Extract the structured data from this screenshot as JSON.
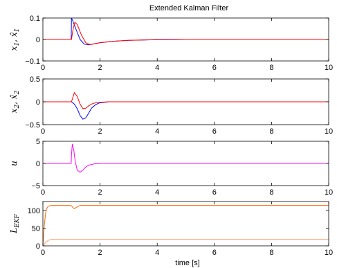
{
  "title": "Extended Kalman Filter",
  "xlabel": "time [s]",
  "chart_data": [
    {
      "type": "line",
      "ylabel": [
        "x",
        "1",
        ", ",
        "x̂",
        "1"
      ],
      "xlim": [
        0,
        10
      ],
      "ylim": [
        -0.1,
        0.1
      ],
      "xticks": [
        0,
        2,
        4,
        6,
        8,
        10
      ],
      "yticks": [
        -0.1,
        0,
        0.1
      ],
      "ytick_labels": [
        "−0.1",
        "0",
        "0.1"
      ],
      "series": [
        {
          "color": "#0000ff",
          "x": [
            0,
            0.99,
            1.0,
            1.05,
            1.15,
            1.3,
            1.45,
            1.6,
            1.8,
            2.0,
            2.5,
            3.0,
            4.0,
            5.0,
            10
          ],
          "y": [
            0,
            0,
            0.1,
            0.085,
            0.05,
            0.0,
            -0.022,
            -0.025,
            -0.02,
            -0.015,
            -0.008,
            -0.004,
            -0.001,
            0,
            0
          ]
        },
        {
          "color": "#ff0000",
          "x": [
            0,
            1.0,
            1.05,
            1.12,
            1.2,
            1.35,
            1.5,
            1.65,
            1.8,
            2.0,
            2.5,
            3.0,
            4.0,
            5.0,
            10
          ],
          "y": [
            0,
            0,
            0.045,
            0.08,
            0.07,
            0.02,
            -0.015,
            -0.024,
            -0.02,
            -0.015,
            -0.008,
            -0.004,
            -0.001,
            0,
            0
          ]
        }
      ]
    },
    {
      "type": "line",
      "ylabel": [
        "x",
        "2",
        ", ",
        "x̂",
        "2"
      ],
      "xlim": [
        0,
        10
      ],
      "ylim": [
        -0.5,
        0.5
      ],
      "xticks": [
        0,
        2,
        4,
        6,
        8,
        10
      ],
      "yticks": [
        -0.5,
        0,
        0.5
      ],
      "ytick_labels": [
        "−0.5",
        "0",
        "0.5"
      ],
      "series": [
        {
          "color": "#0000ff",
          "x": [
            0,
            1.0,
            1.1,
            1.2,
            1.3,
            1.4,
            1.5,
            1.6,
            1.7,
            1.85,
            2.0,
            2.3,
            3.0,
            10
          ],
          "y": [
            0,
            0,
            -0.05,
            -0.15,
            -0.3,
            -0.38,
            -0.35,
            -0.25,
            -0.14,
            -0.06,
            -0.02,
            0,
            0,
            0
          ]
        },
        {
          "color": "#ff0000",
          "x": [
            0,
            1.0,
            1.05,
            1.1,
            1.2,
            1.3,
            1.4,
            1.5,
            1.6,
            1.7,
            1.85,
            2.0,
            2.3,
            3.0,
            10
          ],
          "y": [
            0,
            0,
            0.1,
            0.2,
            0.12,
            -0.05,
            -0.15,
            -0.14,
            -0.09,
            -0.05,
            -0.02,
            -0.01,
            0,
            0,
            0
          ]
        }
      ]
    },
    {
      "type": "line",
      "ylabel": [
        "u"
      ],
      "xlim": [
        0,
        10
      ],
      "ylim": [
        -5,
        5
      ],
      "xticks": [
        0,
        2,
        4,
        6,
        8,
        10
      ],
      "yticks": [
        -5,
        0,
        5
      ],
      "ytick_labels": [
        "−5",
        "0",
        "5"
      ],
      "series": [
        {
          "color": "#ff00ff",
          "x": [
            0,
            0.99,
            1.0,
            1.03,
            1.08,
            1.13,
            1.2,
            1.3,
            1.4,
            1.5,
            1.6,
            1.8,
            2.0,
            2.3,
            3.0,
            10
          ],
          "y": [
            0,
            0,
            2.0,
            4.4,
            3.0,
            0.5,
            -1.5,
            -2.0,
            -1.5,
            -0.8,
            -0.4,
            -0.1,
            0,
            0,
            0,
            0
          ]
        }
      ]
    },
    {
      "type": "line",
      "ylabel": [
        "L",
        "EKF"
      ],
      "xlim": [
        0,
        10
      ],
      "ylim": [
        0,
        125
      ],
      "xticks": [
        0,
        2,
        4,
        6,
        8,
        10
      ],
      "yticks": [
        0,
        50,
        100
      ],
      "ytick_labels": [
        "0",
        "50",
        "100"
      ],
      "series": [
        {
          "color": "#ff6600",
          "x": [
            0,
            0.05,
            0.1,
            0.15,
            0.2,
            0.25,
            0.3,
            0.4,
            0.5,
            0.9,
            1.0,
            1.05,
            1.1,
            1.2,
            1.3,
            1.5,
            10
          ],
          "y": [
            0,
            60,
            95,
            108,
            112,
            113,
            114,
            114,
            114,
            114,
            113,
            108,
            105,
            110,
            114,
            114,
            114
          ]
        },
        {
          "color": "#ff9966",
          "x": [
            0,
            0.1,
            0.2,
            0.3,
            0.4,
            10
          ],
          "y": [
            0,
            10,
            16,
            18,
            18,
            18
          ]
        }
      ]
    }
  ]
}
